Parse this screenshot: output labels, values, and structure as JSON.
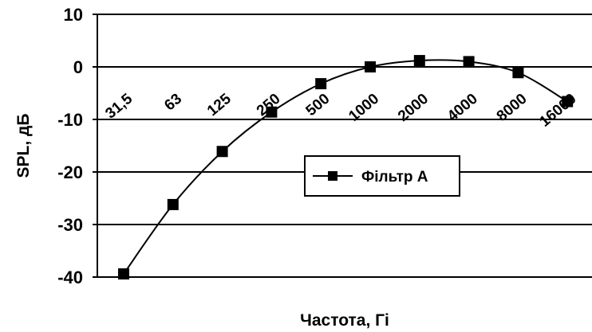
{
  "chart_data": {
    "type": "line",
    "title": "",
    "xlabel": "Частота, Гі",
    "ylabel": "SPL, дБ",
    "categories": [
      "31,5",
      "63",
      "125",
      "250",
      "500",
      "1000",
      "2000",
      "4000",
      "8000",
      "16000"
    ],
    "y_ticks": [
      "10",
      "0",
      "-10",
      "-20",
      "-30",
      "-40"
    ],
    "ylim": [
      -40,
      10
    ],
    "grid": "horizontal",
    "legend_position": "center-right",
    "series": [
      {
        "name": "Фільтр А",
        "values": [
          -39.4,
          -26.2,
          -16.1,
          -8.6,
          -3.2,
          0.0,
          1.2,
          1.0,
          -1.1,
          -6.6
        ],
        "color": "#000000",
        "marker": "square"
      }
    ]
  }
}
